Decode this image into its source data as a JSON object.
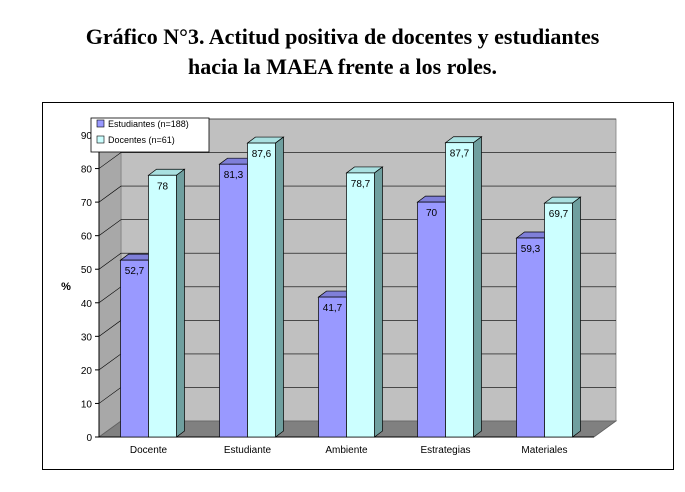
{
  "title": {
    "line1": "Gráfico N°3. Actitud positiva de docentes y estudiantes",
    "line2": "hacia la MAEA frente a los roles."
  },
  "colors": {
    "estudiantes_front": "#9999ff",
    "estudiantes_top": "#7f7fd9",
    "estudiantes_side": "#5555aa",
    "docentes_front": "#ccffff",
    "docentes_top": "#a9e0e0",
    "docentes_side": "#6f9f9f",
    "plot_back": "#c0c0c0",
    "plot_floor": "#808080"
  },
  "chart_data": {
    "type": "bar",
    "title": "",
    "xlabel": "",
    "ylabel": "%",
    "ylim": [
      0,
      90
    ],
    "yticks": [
      "0",
      "10",
      "20",
      "30",
      "40",
      "50",
      "60",
      "70",
      "80",
      "90"
    ],
    "categories": [
      "Docente",
      "Estudiante",
      "Ambiente",
      "Estrategias",
      "Materiales"
    ],
    "series": [
      {
        "name": "Estudiantes (n=188)",
        "values": [
          52.7,
          81.3,
          41.7,
          70,
          59.3
        ],
        "labels": [
          "52,7",
          "81,3",
          "41,7",
          "70",
          "59,3"
        ]
      },
      {
        "name": "Docentes (n=61)",
        "values": [
          78,
          87.6,
          78.7,
          87.7,
          69.7
        ],
        "labels": [
          "78",
          "87,6",
          "78,7",
          "87,7",
          "69,7"
        ]
      }
    ],
    "legend_position": "top-left",
    "grid": true,
    "three_d": true
  }
}
